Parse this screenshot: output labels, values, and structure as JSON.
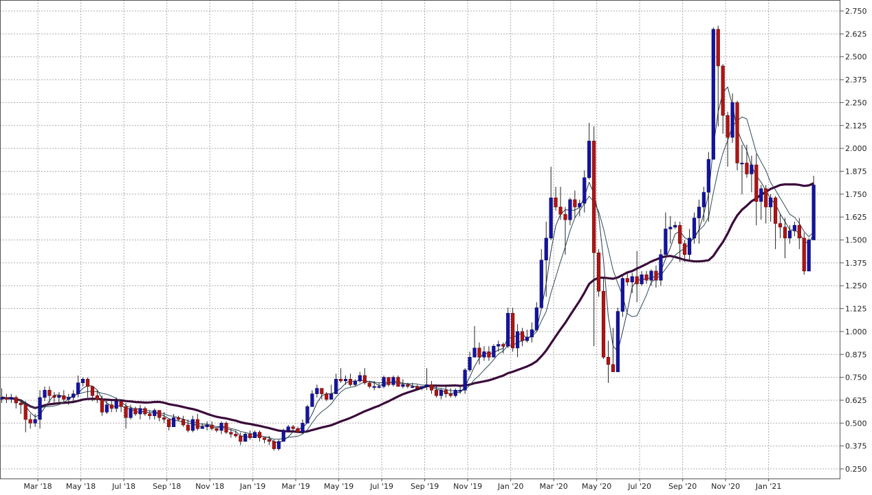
{
  "colors": {
    "up": "#1414a0",
    "down": "#b01414",
    "wick": "#222222",
    "ma_short": "#23384a",
    "ma_mid": "#2f4b55",
    "ma_long": "#3a0a3a",
    "grid": "#aaaaaa",
    "frame": "#555555"
  },
  "chart_data": {
    "type": "candlestick",
    "title": "",
    "xlabel": "",
    "ylabel": "",
    "ylim": [
      0.25,
      2.75
    ],
    "grid": true,
    "y_axis_side": "right",
    "y_ticks": [
      "2.750",
      "2.625",
      "2.500",
      "2.375",
      "2.250",
      "2.125",
      "2.000",
      "1.875",
      "1.750",
      "1.625",
      "1.500",
      "1.375",
      "1.250",
      "1.125",
      "1.000",
      "0.875",
      "0.750",
      "0.625",
      "0.500",
      "0.375",
      "0.250"
    ],
    "x_ticks": [
      {
        "label": "Mar '18",
        "index": 8
      },
      {
        "label": "May '18",
        "index": 17
      },
      {
        "label": "Jul '18",
        "index": 26
      },
      {
        "label": "Sep '18",
        "index": 35
      },
      {
        "label": "Nov '18",
        "index": 44
      },
      {
        "label": "Jan '19",
        "index": 53
      },
      {
        "label": "Mar '19",
        "index": 62
      },
      {
        "label": "May '19",
        "index": 71
      },
      {
        "label": "Jul '19",
        "index": 80
      },
      {
        "label": "Sep '19",
        "index": 89
      },
      {
        "label": "Nov '19",
        "index": 98
      },
      {
        "label": "Jan '20",
        "index": 107
      },
      {
        "label": "Mar '20",
        "index": 116
      },
      {
        "label": "May '20",
        "index": 125
      },
      {
        "label": "Jul '20",
        "index": 134
      },
      {
        "label": "Sep '20",
        "index": 143
      },
      {
        "label": "Nov '20",
        "index": 152
      },
      {
        "label": "Jan '21",
        "index": 161
      }
    ],
    "candles": [
      [
        0.63,
        0.64,
        0.69,
        0.61
      ],
      [
        0.64,
        0.63,
        0.66,
        0.61
      ],
      [
        0.63,
        0.64,
        0.66,
        0.61
      ],
      [
        0.64,
        0.61,
        0.65,
        0.58
      ],
      [
        0.61,
        0.6,
        0.63,
        0.55
      ],
      [
        0.6,
        0.52,
        0.62,
        0.45
      ],
      [
        0.52,
        0.5,
        0.55,
        0.47
      ],
      [
        0.5,
        0.52,
        0.55,
        0.48
      ],
      [
        0.52,
        0.64,
        0.68,
        0.47
      ],
      [
        0.64,
        0.68,
        0.7,
        0.62
      ],
      [
        0.68,
        0.65,
        0.7,
        0.61
      ],
      [
        0.65,
        0.64,
        0.67,
        0.6
      ],
      [
        0.64,
        0.65,
        0.67,
        0.61
      ],
      [
        0.65,
        0.63,
        0.68,
        0.61
      ],
      [
        0.63,
        0.64,
        0.66,
        0.6
      ],
      [
        0.64,
        0.66,
        0.68,
        0.61
      ],
      [
        0.66,
        0.72,
        0.76,
        0.64
      ],
      [
        0.72,
        0.74,
        0.75,
        0.7
      ],
      [
        0.74,
        0.7,
        0.75,
        0.64
      ],
      [
        0.7,
        0.65,
        0.7,
        0.62
      ],
      [
        0.65,
        0.63,
        0.68,
        0.61
      ],
      [
        0.63,
        0.56,
        0.65,
        0.54
      ],
      [
        0.56,
        0.6,
        0.63,
        0.55
      ],
      [
        0.6,
        0.58,
        0.62,
        0.56
      ],
      [
        0.58,
        0.62,
        0.64,
        0.56
      ],
      [
        0.62,
        0.59,
        0.63,
        0.56
      ],
      [
        0.59,
        0.53,
        0.61,
        0.47
      ],
      [
        0.53,
        0.58,
        0.6,
        0.52
      ],
      [
        0.58,
        0.55,
        0.59,
        0.54
      ],
      [
        0.55,
        0.58,
        0.6,
        0.52
      ],
      [
        0.58,
        0.55,
        0.59,
        0.54
      ],
      [
        0.55,
        0.54,
        0.57,
        0.52
      ],
      [
        0.54,
        0.57,
        0.58,
        0.52
      ],
      [
        0.57,
        0.53,
        0.57,
        0.51
      ],
      [
        0.53,
        0.52,
        0.56,
        0.5
      ],
      [
        0.52,
        0.48,
        0.52,
        0.46
      ],
      [
        0.48,
        0.53,
        0.55,
        0.48
      ],
      [
        0.53,
        0.52,
        0.54,
        0.51
      ],
      [
        0.52,
        0.49,
        0.54,
        0.48
      ],
      [
        0.49,
        0.46,
        0.52,
        0.45
      ],
      [
        0.46,
        0.52,
        0.54,
        0.45
      ],
      [
        0.52,
        0.47,
        0.55,
        0.46
      ],
      [
        0.47,
        0.48,
        0.5,
        0.47
      ],
      [
        0.48,
        0.49,
        0.51,
        0.46
      ],
      [
        0.49,
        0.47,
        0.51,
        0.46
      ],
      [
        0.47,
        0.46,
        0.47,
        0.45
      ],
      [
        0.46,
        0.5,
        0.51,
        0.44
      ],
      [
        0.5,
        0.45,
        0.51,
        0.44
      ],
      [
        0.45,
        0.44,
        0.47,
        0.42
      ],
      [
        0.44,
        0.43,
        0.46,
        0.42
      ],
      [
        0.43,
        0.4,
        0.45,
        0.38
      ],
      [
        0.4,
        0.44,
        0.45,
        0.4
      ],
      [
        0.44,
        0.42,
        0.46,
        0.41
      ],
      [
        0.42,
        0.45,
        0.46,
        0.42
      ],
      [
        0.45,
        0.42,
        0.46,
        0.4
      ],
      [
        0.42,
        0.41,
        0.42,
        0.39
      ],
      [
        0.41,
        0.4,
        0.43,
        0.38
      ],
      [
        0.4,
        0.36,
        0.41,
        0.35
      ],
      [
        0.36,
        0.4,
        0.41,
        0.35
      ],
      [
        0.4,
        0.46,
        0.47,
        0.43
      ],
      [
        0.46,
        0.48,
        0.49,
        0.46
      ],
      [
        0.48,
        0.47,
        0.49,
        0.46
      ],
      [
        0.47,
        0.45,
        0.48,
        0.45
      ],
      [
        0.45,
        0.5,
        0.52,
        0.44
      ],
      [
        0.5,
        0.59,
        0.6,
        0.5
      ],
      [
        0.59,
        0.66,
        0.68,
        0.59
      ],
      [
        0.66,
        0.69,
        0.71,
        0.64
      ],
      [
        0.69,
        0.66,
        0.69,
        0.63
      ],
      [
        0.66,
        0.63,
        0.67,
        0.62
      ],
      [
        0.63,
        0.66,
        0.71,
        0.63
      ],
      [
        0.66,
        0.74,
        0.77,
        0.66
      ],
      [
        0.74,
        0.73,
        0.8,
        0.72
      ],
      [
        0.73,
        0.74,
        0.76,
        0.71
      ],
      [
        0.74,
        0.71,
        0.77,
        0.7
      ],
      [
        0.71,
        0.73,
        0.74,
        0.7
      ],
      [
        0.73,
        0.76,
        0.78,
        0.72
      ],
      [
        0.76,
        0.72,
        0.8,
        0.71
      ],
      [
        0.72,
        0.7,
        0.73,
        0.69
      ],
      [
        0.7,
        0.7,
        0.73,
        0.68
      ],
      [
        0.7,
        0.7,
        0.72,
        0.69
      ],
      [
        0.7,
        0.75,
        0.76,
        0.69
      ],
      [
        0.75,
        0.71,
        0.75,
        0.7
      ],
      [
        0.71,
        0.75,
        0.76,
        0.7
      ],
      [
        0.75,
        0.7,
        0.76,
        0.7
      ],
      [
        0.7,
        0.71,
        0.74,
        0.69
      ],
      [
        0.71,
        0.7,
        0.72,
        0.69
      ],
      [
        0.7,
        0.7,
        0.72,
        0.69
      ],
      [
        0.7,
        0.69,
        0.71,
        0.68
      ],
      [
        0.69,
        0.7,
        0.7,
        0.68
      ],
      [
        0.7,
        0.71,
        0.8,
        0.68
      ],
      [
        0.71,
        0.68,
        0.73,
        0.66
      ],
      [
        0.68,
        0.65,
        0.71,
        0.64
      ],
      [
        0.65,
        0.68,
        0.69,
        0.63
      ],
      [
        0.68,
        0.66,
        0.71,
        0.64
      ],
      [
        0.66,
        0.65,
        0.69,
        0.64
      ],
      [
        0.65,
        0.68,
        0.69,
        0.64
      ],
      [
        0.68,
        0.68,
        0.7,
        0.66
      ],
      [
        0.68,
        0.79,
        0.8,
        0.66
      ],
      [
        0.79,
        0.86,
        0.89,
        0.78
      ],
      [
        0.86,
        0.91,
        1.03,
        0.86
      ],
      [
        0.91,
        0.86,
        0.94,
        0.82
      ],
      [
        0.86,
        0.89,
        0.92,
        0.84
      ],
      [
        0.89,
        0.86,
        0.92,
        0.84
      ],
      [
        0.86,
        0.92,
        0.93,
        0.86
      ],
      [
        0.92,
        0.93,
        0.95,
        0.89
      ],
      [
        0.93,
        0.92,
        0.94,
        0.88
      ],
      [
        0.92,
        1.1,
        1.13,
        0.91
      ],
      [
        1.1,
        0.91,
        1.13,
        0.89
      ],
      [
        0.91,
        1.0,
        1.04,
        0.86
      ],
      [
        1.0,
        0.95,
        1.02,
        0.92
      ],
      [
        0.95,
        0.97,
        1.01,
        0.94
      ],
      [
        0.97,
        1.01,
        1.05,
        0.94
      ],
      [
        1.01,
        1.13,
        1.16,
        1.0
      ],
      [
        1.13,
        1.39,
        1.45,
        1.14
      ],
      [
        1.39,
        1.51,
        1.6,
        1.19
      ],
      [
        1.51,
        1.73,
        1.9,
        1.5
      ],
      [
        1.73,
        1.68,
        1.79,
        1.66
      ],
      [
        1.68,
        1.64,
        1.79,
        1.61
      ],
      [
        1.64,
        1.61,
        1.68,
        1.42
      ],
      [
        1.61,
        1.72,
        1.73,
        1.58
      ],
      [
        1.72,
        1.68,
        1.77,
        1.62
      ],
      [
        1.68,
        1.7,
        1.72,
        1.63
      ],
      [
        1.7,
        1.84,
        1.88,
        1.65
      ],
      [
        1.84,
        2.04,
        2.14,
        1.83
      ],
      [
        2.04,
        1.43,
        2.12,
        0.92
      ],
      [
        1.43,
        1.22,
        1.45,
        1.19
      ],
      [
        1.22,
        0.86,
        1.29,
        0.85
      ],
      [
        0.86,
        0.82,
        0.95,
        0.72
      ],
      [
        0.82,
        0.78,
        1.02,
        0.79
      ],
      [
        0.78,
        1.11,
        1.13,
        0.78
      ],
      [
        1.11,
        1.29,
        1.31,
        1.08
      ],
      [
        1.29,
        1.27,
        1.32,
        1.25
      ],
      [
        1.27,
        1.3,
        1.32,
        1.21
      ],
      [
        1.3,
        1.26,
        1.44,
        1.16
      ],
      [
        1.26,
        1.31,
        1.33,
        1.25
      ],
      [
        1.31,
        1.28,
        1.33,
        1.26
      ],
      [
        1.28,
        1.33,
        1.34,
        1.25
      ],
      [
        1.33,
        1.28,
        1.36,
        1.24
      ],
      [
        1.28,
        1.42,
        1.45,
        1.25
      ],
      [
        1.42,
        1.56,
        1.65,
        1.46
      ],
      [
        1.56,
        1.57,
        1.63,
        1.48
      ],
      [
        1.57,
        1.58,
        1.6,
        1.56
      ],
      [
        1.58,
        1.48,
        1.6,
        1.38
      ],
      [
        1.48,
        1.42,
        1.5,
        1.38
      ],
      [
        1.42,
        1.51,
        1.56,
        1.38
      ],
      [
        1.51,
        1.62,
        1.65,
        1.48
      ],
      [
        1.62,
        1.68,
        1.72,
        1.48
      ],
      [
        1.68,
        1.76,
        1.79,
        1.6
      ],
      [
        1.76,
        1.94,
        1.98,
        1.6
      ],
      [
        1.94,
        2.65,
        2.66,
        1.98
      ],
      [
        2.65,
        2.45,
        2.67,
        2.12
      ],
      [
        2.45,
        2.18,
        2.46,
        2.08
      ],
      [
        2.18,
        2.06,
        2.2,
        1.9
      ],
      [
        2.06,
        2.25,
        2.3,
        2.03
      ],
      [
        2.25,
        1.92,
        2.26,
        1.88
      ],
      [
        1.92,
        1.92,
        2.02,
        1.75
      ],
      [
        1.92,
        1.86,
        2.02,
        1.84
      ],
      [
        1.86,
        1.91,
        1.96,
        1.76
      ],
      [
        1.91,
        1.71,
        1.97,
        1.58
      ],
      [
        1.71,
        1.78,
        1.8,
        1.61
      ],
      [
        1.78,
        1.68,
        1.8,
        1.59
      ],
      [
        1.68,
        1.73,
        1.75,
        1.6
      ],
      [
        1.73,
        1.59,
        1.74,
        1.45
      ],
      [
        1.59,
        1.57,
        1.64,
        1.51
      ],
      [
        1.57,
        1.51,
        1.62,
        1.4
      ],
      [
        1.51,
        1.55,
        1.58,
        1.48
      ],
      [
        1.55,
        1.58,
        1.6,
        1.52
      ],
      [
        1.58,
        1.51,
        1.62,
        1.45
      ],
      [
        1.51,
        1.33,
        1.54,
        1.31
      ],
      [
        1.33,
        1.5,
        1.51,
        1.38
      ],
      [
        1.5,
        1.8,
        1.85,
        1.56
      ]
    ]
  }
}
